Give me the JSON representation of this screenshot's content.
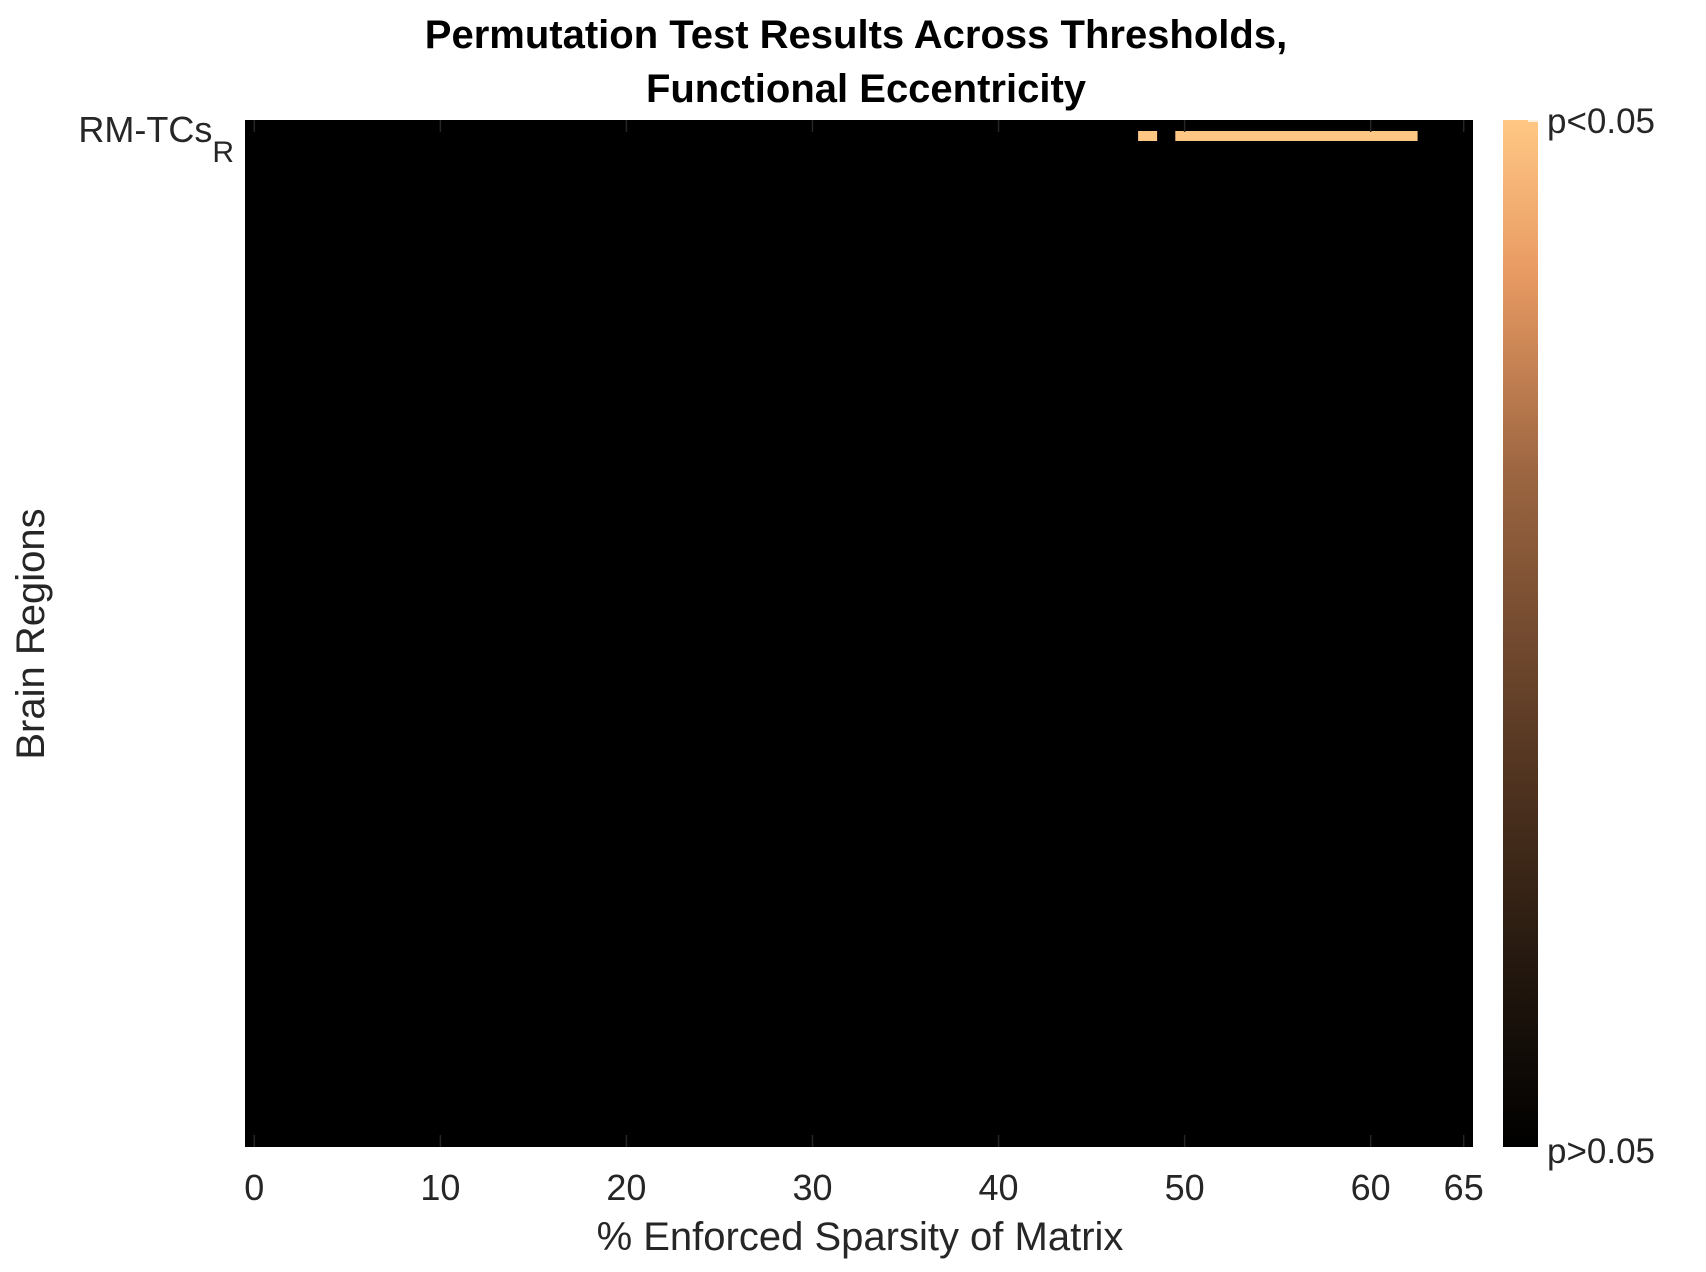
{
  "chart_data": {
    "type": "heatmap",
    "title_lines": [
      "Permutation Test Results Across Thresholds,",
      "Functional Eccentricity"
    ],
    "xlabel": "% Enforced Sparsity of Matrix",
    "ylabel": "Brain Regions",
    "xlim": [
      -0.5,
      65.5
    ],
    "x_ticks": [
      0,
      10,
      20,
      30,
      40,
      50,
      60,
      65
    ],
    "y_tick_label": {
      "main": "RM-TCs",
      "subscript": "R"
    },
    "rows": [
      {
        "label": "RM-TCs_R",
        "significant_x": [
          48,
          50,
          51,
          52,
          53,
          54,
          55,
          56,
          57,
          58,
          59,
          60,
          61,
          62
        ]
      }
    ],
    "colorbar": {
      "top_label": "p<0.05",
      "bottom_label": "p>0.05",
      "colors": [
        "#000000",
        "#2b1b10",
        "#5a3a24",
        "#8a5a38",
        "#bb7b4e",
        "#ea9c63",
        "#ffa66a",
        "#ffc784"
      ]
    },
    "colors": {
      "background": "#000000",
      "significant": "#ffc784"
    },
    "grid": false,
    "legend": "colorbar-right"
  }
}
